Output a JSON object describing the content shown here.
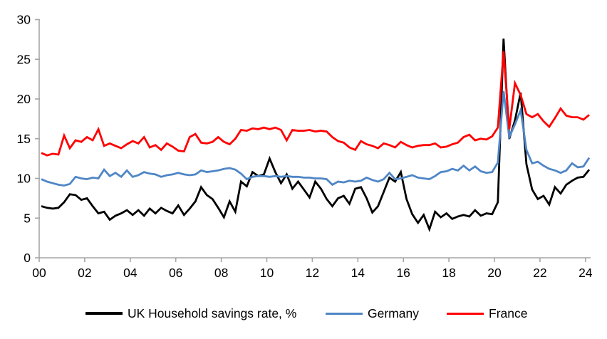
{
  "chart_data": {
    "type": "line",
    "title": "",
    "frequency": "quarterly",
    "x_tick_labels": [
      "00",
      "02",
      "04",
      "06",
      "08",
      "10",
      "12",
      "14",
      "16",
      "18",
      "20",
      "22",
      "24"
    ],
    "y_tick_labels": [
      "0",
      "5",
      "10",
      "15",
      "20",
      "25",
      "30"
    ],
    "y_ticks": [
      0,
      5,
      10,
      15,
      20,
      25,
      30
    ],
    "ylim": [
      0,
      30
    ],
    "grid": false,
    "legend_position": "bottom",
    "axis_color": "#A6A6A6",
    "series": [
      {
        "name": "UK Household savings rate, %",
        "color": "#000000",
        "values": [
          6.5,
          6.3,
          6.2,
          6.3,
          7.0,
          8.0,
          7.9,
          7.3,
          7.5,
          6.5,
          5.6,
          5.8,
          4.8,
          5.3,
          5.6,
          6.0,
          5.4,
          6.0,
          5.3,
          6.2,
          5.6,
          6.3,
          5.9,
          5.6,
          6.6,
          5.4,
          6.2,
          7.1,
          8.9,
          7.9,
          7.4,
          6.3,
          5.1,
          7.1,
          5.8,
          9.6,
          9.0,
          10.8,
          10.3,
          10.5,
          12.5,
          10.8,
          9.4,
          10.5,
          8.7,
          9.6,
          8.6,
          7.6,
          9.6,
          8.7,
          7.4,
          6.5,
          7.5,
          7.8,
          6.8,
          8.7,
          8.9,
          7.5,
          5.7,
          6.5,
          8.3,
          10.1,
          9.6,
          10.8,
          7.4,
          5.5,
          4.4,
          5.4,
          3.6,
          5.8,
          5.1,
          5.6,
          4.9,
          5.2,
          5.4,
          5.2,
          6.0,
          5.3,
          5.6,
          5.5,
          7.0,
          27.6,
          15.0,
          17.3,
          20.8,
          11.8,
          8.6,
          7.4,
          7.8,
          6.7,
          8.9,
          8.1,
          9.2,
          9.7,
          10.1,
          10.2,
          11.1
        ]
      },
      {
        "name": "Germany",
        "color": "#4F86C6",
        "values": [
          9.9,
          9.6,
          9.4,
          9.2,
          9.1,
          9.3,
          10.2,
          10.0,
          9.9,
          10.1,
          10.0,
          11.1,
          10.3,
          10.7,
          10.2,
          11.0,
          10.2,
          10.4,
          10.8,
          10.6,
          10.5,
          10.2,
          10.4,
          10.5,
          10.7,
          10.5,
          10.4,
          10.5,
          11.0,
          10.8,
          10.9,
          11.0,
          11.2,
          11.3,
          11.1,
          10.6,
          9.9,
          10.2,
          10.3,
          10.3,
          10.2,
          10.3,
          10.2,
          10.3,
          10.2,
          10.2,
          10.1,
          10.1,
          10.0,
          10.0,
          9.9,
          9.2,
          9.6,
          9.5,
          9.7,
          9.6,
          9.7,
          10.1,
          9.8,
          9.6,
          9.9,
          10.7,
          9.9,
          10.0,
          10.2,
          10.4,
          10.1,
          10.0,
          9.9,
          10.3,
          10.8,
          10.9,
          11.2,
          11.0,
          11.6,
          11.0,
          11.5,
          10.9,
          10.7,
          10.8,
          12.0,
          21.0,
          15.2,
          16.8,
          18.6,
          13.6,
          11.9,
          12.1,
          11.6,
          11.2,
          11.0,
          10.7,
          11.0,
          11.9,
          11.4,
          11.5,
          12.6
        ]
      },
      {
        "name": "France",
        "color": "#FF0000",
        "values": [
          13.2,
          12.9,
          13.1,
          13.0,
          15.4,
          13.8,
          14.8,
          14.6,
          15.2,
          14.8,
          16.2,
          14.1,
          14.4,
          14.1,
          13.8,
          14.3,
          14.7,
          14.4,
          15.2,
          13.9,
          14.2,
          13.6,
          14.4,
          14.0,
          13.5,
          13.4,
          15.2,
          15.6,
          14.5,
          14.4,
          14.6,
          15.2,
          14.6,
          14.3,
          15.0,
          16.1,
          16.0,
          16.3,
          16.2,
          16.4,
          16.2,
          16.4,
          16.1,
          14.8,
          16.1,
          16.0,
          16.0,
          16.1,
          15.9,
          16.0,
          15.9,
          15.2,
          14.7,
          14.5,
          13.9,
          13.6,
          14.7,
          14.3,
          14.1,
          13.8,
          14.4,
          14.2,
          13.9,
          14.6,
          14.2,
          13.9,
          14.1,
          14.2,
          14.2,
          14.4,
          13.9,
          14.0,
          14.3,
          14.5,
          15.2,
          15.5,
          14.8,
          15.0,
          14.9,
          15.3,
          16.4,
          26.0,
          16.2,
          22.0,
          20.5,
          18.1,
          17.7,
          18.1,
          17.2,
          16.5,
          17.6,
          18.8,
          17.9,
          17.7,
          17.7,
          17.4,
          18.0
        ]
      }
    ]
  },
  "legend": {
    "items": [
      {
        "label": "UK Household savings rate, %"
      },
      {
        "label": "Germany"
      },
      {
        "label": "France"
      }
    ]
  }
}
